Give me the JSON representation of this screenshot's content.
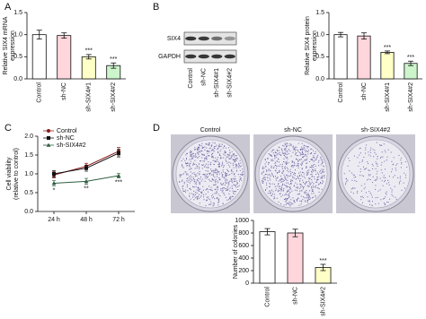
{
  "chart_data": [
    {
      "type": "bar",
      "panel": "A",
      "ylabel": [
        "Relative SIX4 mRNA",
        "expression"
      ],
      "categories": [
        "Control",
        "sh-NC",
        "sh-SIX4#1",
        "sh-SIX4#2"
      ],
      "values": [
        1.0,
        0.98,
        0.5,
        0.3
      ],
      "errors": [
        0.1,
        0.06,
        0.05,
        0.06
      ],
      "colors": [
        "#ffffff",
        "#ffd6dc",
        "#ffffc8",
        "#ccf5cc"
      ],
      "annotations": [
        null,
        null,
        "***",
        "***"
      ],
      "ylim": [
        0,
        1.5
      ],
      "yticks": [
        {
          "value": 0,
          "label": "0.0"
        },
        {
          "value": 0.5,
          "label": "0.5"
        },
        {
          "value": 1.0,
          "label": "1.0"
        },
        {
          "value": 1.5,
          "label": "1.5"
        }
      ]
    },
    {
      "type": "bar",
      "panel": "B",
      "ylabel": [
        "Relative SIX4 protein",
        "expression"
      ],
      "blot": {
        "rows": [
          "SIX4",
          "GAPDH"
        ],
        "columns": [
          "Control",
          "sh-NC",
          "sh-SIX4#1",
          "sh-SIX4#2"
        ]
      },
      "categories": [
        "Control",
        "sh-NC",
        "sh-SIX4#1",
        "sh-SIX4#2"
      ],
      "values": [
        1.0,
        0.97,
        0.6,
        0.35
      ],
      "errors": [
        0.05,
        0.07,
        0.03,
        0.05
      ],
      "colors": [
        "#ffffff",
        "#ffd6dc",
        "#ffffc8",
        "#ccf5cc"
      ],
      "annotations": [
        null,
        null,
        "***",
        "***"
      ],
      "ylim": [
        0,
        1.5
      ],
      "yticks": [
        {
          "value": 0,
          "label": "0.0"
        },
        {
          "value": 0.5,
          "label": "0.5"
        },
        {
          "value": 1.0,
          "label": "1.0"
        },
        {
          "value": 1.5,
          "label": "1.5"
        }
      ]
    },
    {
      "type": "line",
      "panel": "C",
      "ylabel": [
        "Cell viability",
        "(relative to control)"
      ],
      "categories": [
        "24 h",
        "48 h",
        "72 h"
      ],
      "legend": "upper left",
      "series": [
        {
          "name": "Control",
          "color": "#8b1a1a",
          "values": [
            0.97,
            1.2,
            1.6
          ],
          "errors": [
            0.08,
            0.08,
            0.1
          ]
        },
        {
          "name": "sh-NC",
          "color": "#111111",
          "values": [
            1.0,
            1.15,
            1.55
          ],
          "errors": [
            0.08,
            0.08,
            0.1
          ]
        },
        {
          "name": "sh-SIX4#2",
          "color": "#2e5e3e",
          "values": [
            0.75,
            0.8,
            0.95
          ],
          "errors": [
            0.07,
            0.08,
            0.06
          ]
        }
      ],
      "annotations": [
        "*",
        "**",
        "***"
      ],
      "ylim": [
        0,
        2.0
      ],
      "yticks": [
        {
          "value": 0,
          "label": "0.0"
        },
        {
          "value": 0.5,
          "label": "0.5"
        },
        {
          "value": 1.0,
          "label": "1.0"
        },
        {
          "value": 1.5,
          "label": "1.5"
        },
        {
          "value": 2.0,
          "label": "2.0"
        }
      ]
    },
    {
      "type": "bar",
      "panel": "D",
      "ylabel": [
        "Number of colonies"
      ],
      "dishes": [
        "Control",
        "sh-NC",
        "sh-SIX4#2"
      ],
      "categories": [
        "Control",
        "sh-NC",
        "sh-SIX4#2"
      ],
      "values": [
        820,
        800,
        250
      ],
      "errors": [
        50,
        60,
        50
      ],
      "colors": [
        "#ffffff",
        "#ffd6dc",
        "#ffffc8"
      ],
      "annotations": [
        null,
        null,
        "***"
      ],
      "ylim": [
        0,
        1000
      ],
      "yticks": [
        0,
        200,
        400,
        600,
        800,
        1000
      ]
    }
  ]
}
